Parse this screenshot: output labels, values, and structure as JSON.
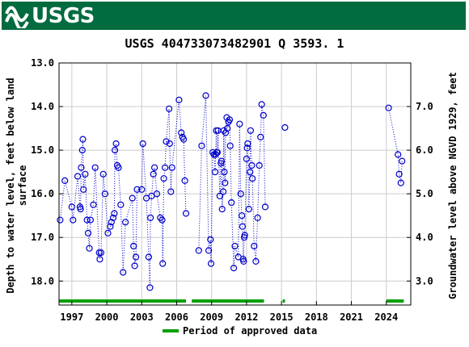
{
  "header": {
    "logo_text": "USGS",
    "background": "#006b3e"
  },
  "chart_data": {
    "type": "scatter",
    "title": "USGS 404733073482901 Q  3593. 1",
    "ylabel_left": "Depth to water level, feet below land surface",
    "ylabel_left_lines": [
      "Depth to water level, feet below land",
      "surface"
    ],
    "ylabel_right": "Groundwater level above NGVD 1929, feet",
    "x_tick_labels": [
      "1997",
      "2000",
      "2003",
      "2006",
      "2009",
      "2012",
      "2015",
      "2018",
      "2021",
      "2024"
    ],
    "x_tick_values": [
      1997,
      2000,
      2003,
      2006,
      2009,
      2012,
      2015,
      2018,
      2021,
      2024
    ],
    "xlim": [
      1995.9,
      2026.1
    ],
    "y_left_tick_labels": [
      "13.0",
      "14.0",
      "15.0",
      "16.0",
      "17.0",
      "18.0"
    ],
    "y_left_tick_values": [
      13,
      14,
      15,
      16,
      17,
      18
    ],
    "ylim_left": [
      13.0,
      18.55
    ],
    "y_right_tick_labels": [
      "7.0",
      "6.0",
      "5.0",
      "4.0",
      "3.0"
    ],
    "y_right_tick_values": [
      7,
      6,
      5,
      4,
      3
    ],
    "right_axis_offset": 21.0,
    "grid": true,
    "legend": {
      "position": "bottom",
      "label": "Period of approved data"
    },
    "colors": {
      "points": "#0000cc",
      "approved": "#00a000",
      "grid": "#cccccc"
    },
    "approved_periods": [
      [
        1995.9,
        2006.8
      ],
      [
        2007.3,
        2013.5
      ],
      [
        2015.1,
        2015.3
      ],
      [
        2024.0,
        2025.5
      ]
    ],
    "series": [
      {
        "segments": [
          [
            [
              1996.0,
              16.6
            ],
            [
              1996.4,
              15.7
            ],
            [
              1997.0,
              16.3
            ],
            [
              1997.1,
              16.6
            ],
            [
              1997.5,
              15.6
            ],
            [
              1997.7,
              16.3
            ],
            [
              1997.75,
              16.35
            ],
            [
              1997.8,
              15.4
            ],
            [
              1997.9,
              15.0
            ],
            [
              1997.95,
              14.75
            ],
            [
              1998.0,
              15.9
            ],
            [
              1998.15,
              15.55
            ],
            [
              1998.3,
              16.6
            ],
            [
              1998.4,
              16.9
            ],
            [
              1998.5,
              17.25
            ],
            [
              1998.6,
              16.6
            ],
            [
              1998.85,
              16.25
            ],
            [
              1999.0,
              15.4
            ],
            [
              1999.35,
              17.35
            ],
            [
              1999.4,
              17.5
            ],
            [
              1999.5,
              17.35
            ],
            [
              1999.7,
              15.55
            ],
            [
              1999.85,
              16.0
            ],
            [
              2000.1,
              16.9
            ],
            [
              2000.3,
              16.75
            ],
            [
              2000.4,
              16.65
            ],
            [
              2000.55,
              16.55
            ],
            [
              2000.65,
              16.45
            ],
            [
              2000.7,
              15.0
            ],
            [
              2000.8,
              14.85
            ],
            [
              2000.9,
              15.35
            ],
            [
              2001.0,
              15.4
            ],
            [
              2001.2,
              16.25
            ],
            [
              2001.4,
              17.8
            ],
            [
              2001.6,
              16.65
            ],
            [
              2002.2,
              16.1
            ],
            [
              2002.3,
              17.2
            ],
            [
              2002.4,
              17.65
            ],
            [
              2002.5,
              17.45
            ],
            [
              2002.6,
              15.9
            ],
            [
              2003.0,
              15.9
            ],
            [
              2003.1,
              14.85
            ],
            [
              2003.4,
              16.1
            ],
            [
              2003.6,
              17.45
            ],
            [
              2003.7,
              18.15
            ],
            [
              2003.75,
              16.55
            ],
            [
              2003.85,
              16.05
            ],
            [
              2004.0,
              15.55
            ],
            [
              2004.1,
              15.4
            ],
            [
              2004.3,
              16.0
            ],
            [
              2004.6,
              16.55
            ],
            [
              2004.75,
              16.6
            ],
            [
              2004.8,
              17.6
            ],
            [
              2004.9,
              15.65
            ],
            [
              2005.0,
              15.4
            ],
            [
              2005.1,
              14.8
            ],
            [
              2005.35,
              14.05
            ],
            [
              2005.4,
              14.85
            ],
            [
              2005.5,
              15.95
            ],
            [
              2005.6,
              15.4
            ],
            [
              2006.2,
              13.85
            ],
            [
              2006.4,
              14.6
            ],
            [
              2006.5,
              14.7
            ],
            [
              2006.6,
              14.75
            ],
            [
              2006.7,
              15.7
            ],
            [
              2006.8,
              16.45
            ]
          ],
          [
            [
              2007.9,
              17.3
            ],
            [
              2008.15,
              14.9
            ],
            [
              2008.5,
              13.75
            ],
            [
              2008.75,
              17.3
            ],
            [
              2008.9,
              17.05
            ],
            [
              2008.95,
              17.6
            ],
            [
              2009.1,
              15.05
            ],
            [
              2009.2,
              15.1
            ],
            [
              2009.3,
              15.5
            ],
            [
              2009.35,
              15.1
            ],
            [
              2009.4,
              14.55
            ],
            [
              2009.45,
              15.05
            ],
            [
              2009.5,
              15.05
            ],
            [
              2009.55,
              14.55
            ],
            [
              2009.7,
              16.05
            ],
            [
              2009.8,
              15.3
            ],
            [
              2009.85,
              15.25
            ],
            [
              2009.9,
              16.35
            ],
            [
              2010.0,
              15.95
            ],
            [
              2010.05,
              14.55
            ],
            [
              2010.1,
              15.5
            ],
            [
              2010.15,
              15.75
            ],
            [
              2010.2,
              14.6
            ],
            [
              2010.3,
              14.25
            ],
            [
              2010.35,
              14.5
            ],
            [
              2010.45,
              14.35
            ],
            [
              2010.55,
              14.3
            ],
            [
              2010.6,
              14.9
            ],
            [
              2010.7,
              16.2
            ],
            [
              2010.9,
              17.7
            ],
            [
              2011.0,
              17.2
            ],
            [
              2011.3,
              17.45
            ],
            [
              2011.4,
              14.4
            ],
            [
              2011.5,
              16.0
            ],
            [
              2011.6,
              16.5
            ],
            [
              2011.65,
              16.75
            ],
            [
              2011.7,
              17.5
            ],
            [
              2011.75,
              17.55
            ],
            [
              2011.8,
              17.0
            ],
            [
              2011.85,
              16.95
            ],
            [
              2012.0,
              15.2
            ],
            [
              2012.05,
              14.95
            ],
            [
              2012.1,
              14.85
            ],
            [
              2012.2,
              16.35
            ],
            [
              2012.3,
              15.5
            ],
            [
              2012.35,
              14.55
            ],
            [
              2012.45,
              15.35
            ],
            [
              2012.5,
              15.65
            ],
            [
              2012.65,
              17.2
            ],
            [
              2012.8,
              17.55
            ],
            [
              2012.95,
              16.55
            ],
            [
              2013.1,
              15.35
            ],
            [
              2013.2,
              14.7
            ],
            [
              2013.3,
              13.95
            ],
            [
              2013.45,
              14.2
            ],
            [
              2013.6,
              16.3
            ]
          ],
          [
            [
              2015.3,
              14.48
            ]
          ],
          [
            [
              2024.2,
              14.03
            ],
            [
              2025.0,
              15.1
            ],
            [
              2025.1,
              15.55
            ],
            [
              2025.25,
              15.75
            ],
            [
              2025.35,
              15.25
            ]
          ]
        ]
      }
    ]
  }
}
